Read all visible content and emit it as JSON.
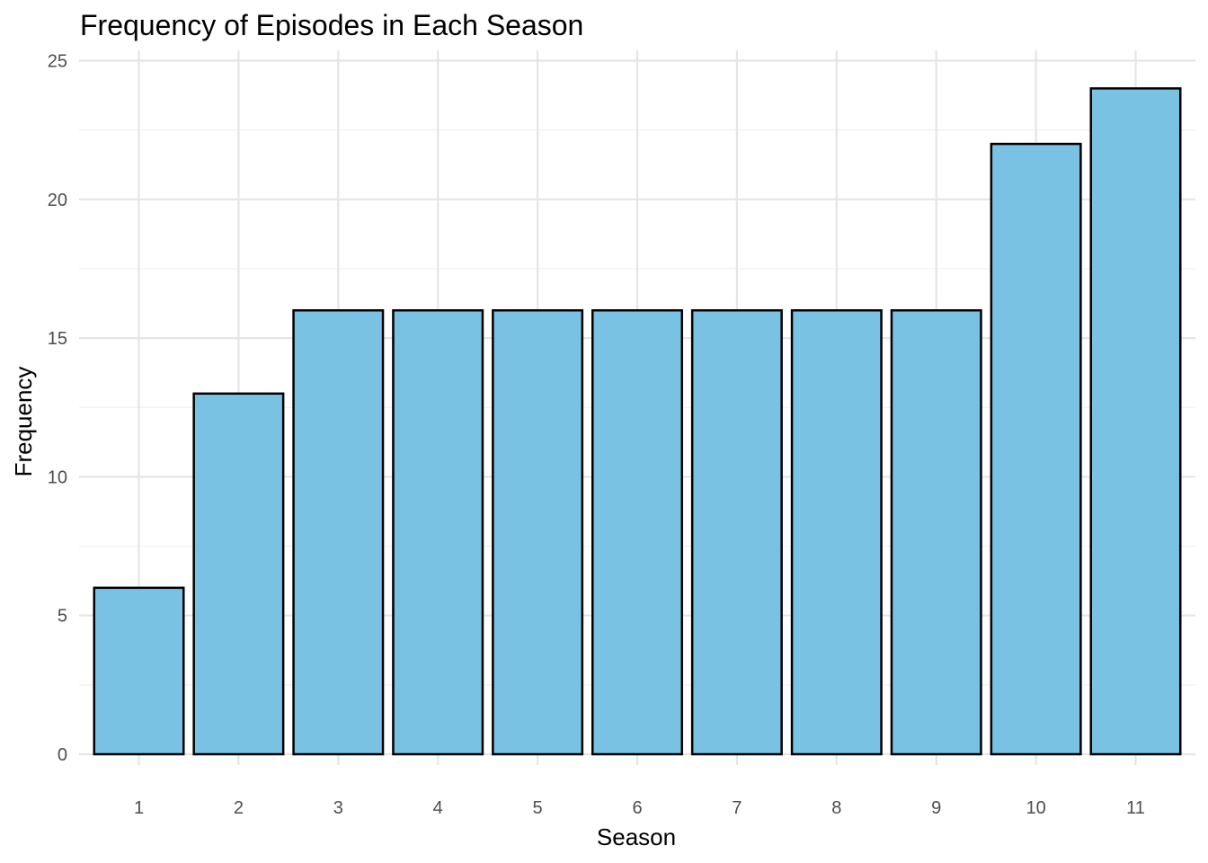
{
  "chart_data": {
    "type": "bar",
    "title": "Frequency of Episodes in Each Season",
    "xlabel": "Season",
    "ylabel": "Frequency",
    "categories": [
      "1",
      "2",
      "3",
      "4",
      "5",
      "6",
      "7",
      "8",
      "9",
      "10",
      "11"
    ],
    "values": [
      6,
      13,
      16,
      16,
      16,
      16,
      16,
      16,
      16,
      22,
      24
    ],
    "ylim": [
      0,
      25
    ],
    "yticks": [
      "0",
      "5",
      "10",
      "15",
      "20",
      "25"
    ],
    "grid": true,
    "bar_color": "#7AC2E4",
    "bar_outline": "#000000"
  }
}
